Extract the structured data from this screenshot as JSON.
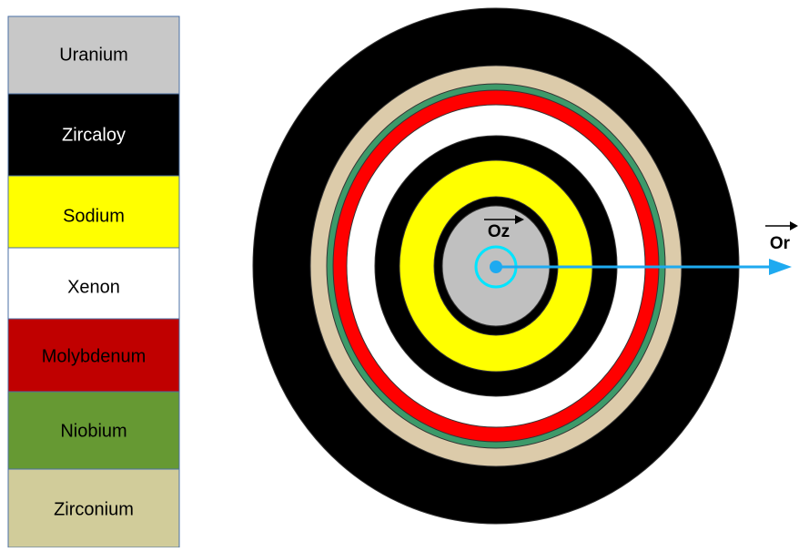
{
  "legend": {
    "items": [
      {
        "label": "Uranium"
      },
      {
        "label": "Zircaloy"
      },
      {
        "label": "Sodium"
      },
      {
        "label": "Xenon"
      },
      {
        "label": "Molybdenum"
      },
      {
        "label": "Niobium"
      },
      {
        "label": "Zirconium"
      }
    ]
  },
  "axes": {
    "z": "Oz",
    "r": "Or"
  }
}
